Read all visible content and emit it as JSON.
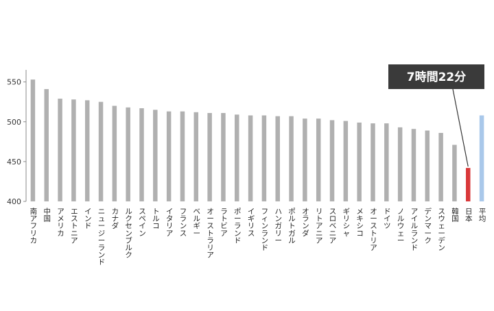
{
  "chart_data": {
    "type": "bar",
    "ylim": [
      400,
      560
    ],
    "yticks": [
      400,
      450,
      500,
      550
    ],
    "grid": false,
    "categories": [
      "南アフリカ",
      "中国",
      "アメリカ",
      "エストニア",
      "インド",
      "ニュージーランド",
      "カナダ",
      "ルクセンブルク",
      "スペイン",
      "トルコ",
      "イタリア",
      "フランス",
      "ベルギー",
      "オーストラリア",
      "ラトビア",
      "ポーランド",
      "イギリス",
      "フィンランド",
      "ハンガリー",
      "ポルトガル",
      "オランダ",
      "リトアニア",
      "スロベニア",
      "ギリシャ",
      "メキシコ",
      "オーストリア",
      "ドイツ",
      "ノルウェー",
      "アイルランド",
      "デンマーク",
      "スウェーデン",
      "韓国",
      "日本",
      "平均"
    ],
    "values": [
      553,
      541,
      529,
      528,
      527,
      525,
      520,
      518,
      517,
      515,
      513,
      513,
      512,
      511,
      511,
      509,
      508,
      508,
      507,
      507,
      504,
      504,
      502,
      501,
      499,
      498,
      498,
      493,
      491,
      489,
      486,
      471,
      442,
      508
    ],
    "colors": {
      "default": "#b0b0b0",
      "highlight": "#d9383a",
      "average": "#a9c8ea",
      "axis": "#888888",
      "callout_bg": "#3a3a3a"
    },
    "highlight_category": "日本",
    "average_category": "平均",
    "callout": {
      "text": "7時間22分",
      "target": "日本"
    }
  }
}
